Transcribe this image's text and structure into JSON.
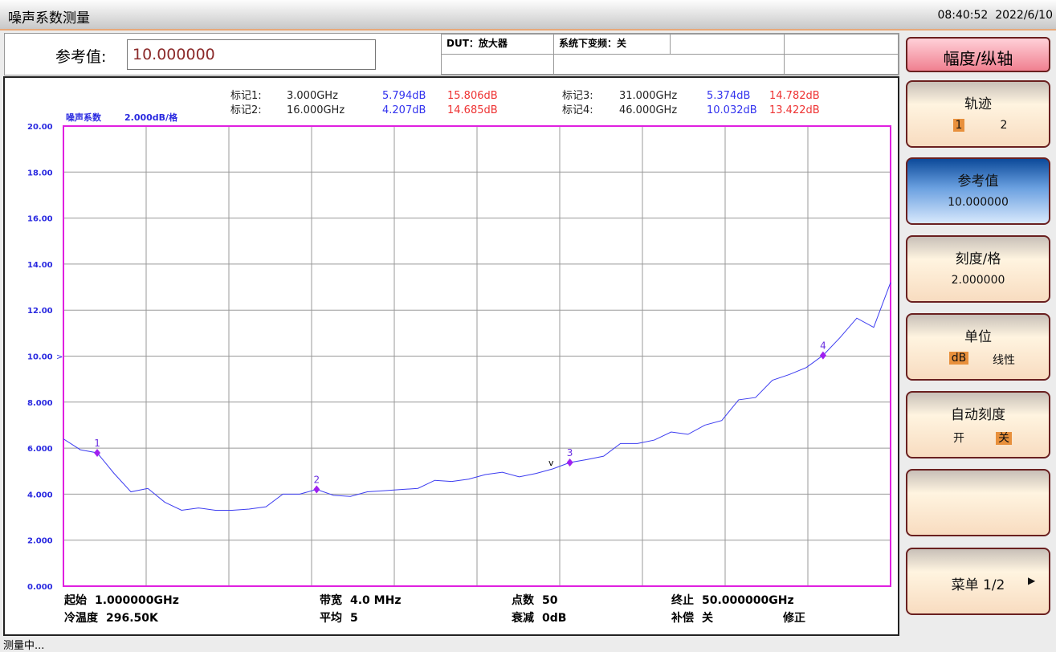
{
  "header": {
    "title": "噪声系数测量",
    "datetime": "08:40:52  2022/6/10"
  },
  "reference": {
    "label": "参考值:",
    "value": "10.000000"
  },
  "info_cells": [
    "DUT：放大器",
    "系统下变频：关"
  ],
  "chart_data": {
    "type": "line",
    "title": "噪声系数",
    "scale_label": "2.000dB/格",
    "x": [
      1,
      2,
      3,
      4,
      5,
      6,
      7,
      8,
      9,
      10,
      11,
      12,
      13,
      14,
      15,
      16,
      17,
      18,
      19,
      20,
      21,
      22,
      23,
      24,
      25,
      26,
      27,
      28,
      29,
      30,
      31,
      32,
      33,
      34,
      35,
      36,
      37,
      38,
      39,
      40,
      41,
      42,
      43,
      44,
      45,
      46,
      47,
      48,
      49,
      50
    ],
    "series": [
      {
        "color": "#3c3cf0",
        "values": [
          6.4,
          5.93,
          5.794,
          4.9,
          4.1,
          4.25,
          3.65,
          3.3,
          3.4,
          3.3,
          3.3,
          3.35,
          3.45,
          4.0,
          4.0,
          4.207,
          3.95,
          3.9,
          4.1,
          4.15,
          4.2,
          4.25,
          4.6,
          4.55,
          4.65,
          4.85,
          4.95,
          4.75,
          4.9,
          5.1,
          5.374,
          5.5,
          5.65,
          6.2,
          6.2,
          6.35,
          6.7,
          6.6,
          7.0,
          7.2,
          8.1,
          8.2,
          8.95,
          9.2,
          9.5,
          10.032,
          10.8,
          11.65,
          11.25,
          13.2
        ]
      }
    ],
    "xlim": [
      1,
      50
    ],
    "xticks": [
      1,
      5.9,
      10.8,
      15.7,
      20.6,
      25.5,
      30.4,
      35.3,
      40.2,
      45.1,
      50
    ],
    "ylim": [
      0,
      20
    ],
    "yticks": [
      {
        "value": 0,
        "label": "0.000"
      },
      {
        "value": 2,
        "label": "2.000"
      },
      {
        "value": 4,
        "label": "4.000"
      },
      {
        "value": 6,
        "label": "6.000"
      },
      {
        "value": 8,
        "label": "8.000"
      },
      {
        "value": 10,
        "label": "10.00"
      },
      {
        "value": 12,
        "label": "12.00"
      },
      {
        "value": 14,
        "label": "14.00"
      },
      {
        "value": 16,
        "label": "16.00"
      },
      {
        "value": 18,
        "label": "18.00"
      },
      {
        "value": 20,
        "label": "20.00"
      }
    ],
    "grid": true,
    "reference_level": 10,
    "marker_color": "#a020f0",
    "markers": [
      {
        "name": "1",
        "label": "标记1:",
        "x": 3,
        "value": 5.794,
        "x_label": "3.000GHz",
        "value_label": "5.794dB",
        "gain_label": "15.806dB"
      },
      {
        "name": "2",
        "label": "标记2:",
        "x": 16,
        "value": 4.207,
        "x_label": "16.000GHz",
        "value_label": "4.207dB",
        "gain_label": "14.685dB"
      },
      {
        "name": "3",
        "label": "标记3:",
        "x": 31,
        "value": 5.374,
        "x_label": "31.000GHz",
        "value_label": "5.374dB",
        "gain_label": "14.782dB"
      },
      {
        "name": "4",
        "label": "标记4:",
        "x": 46,
        "value": 10.032,
        "x_label": "46.000GHz",
        "value_label": "10.032dB",
        "gain_label": "13.422dB"
      }
    ]
  },
  "footer_info": [
    [
      "起始",
      "1.000000GHz"
    ],
    [
      "带宽",
      "4.0  MHz"
    ],
    [
      "点数",
      "50"
    ],
    [
      "终止",
      "50.000000GHz"
    ],
    [
      "冷温度",
      "296.50K"
    ],
    [
      "平均",
      "5"
    ],
    [
      "衰减",
      "0dB"
    ],
    [
      "补偿",
      "关"
    ],
    [
      "修正"
    ]
  ],
  "menu": {
    "title": "幅度/纵轴",
    "buttons": [
      {
        "label": "轨迹",
        "options": [
          "1",
          "2"
        ],
        "selected": 0
      },
      {
        "label": "参考值",
        "value": "10.000000",
        "active": true
      },
      {
        "label": "刻度/格",
        "value": "2.000000"
      },
      {
        "label": "单位",
        "options": [
          "dB",
          "线性"
        ],
        "selected": 0
      },
      {
        "label": "自动刻度",
        "options": [
          "开",
          "关"
        ],
        "selected": 1
      },
      {
        "label": "菜单 1/2"
      }
    ]
  },
  "status": "测量中..."
}
